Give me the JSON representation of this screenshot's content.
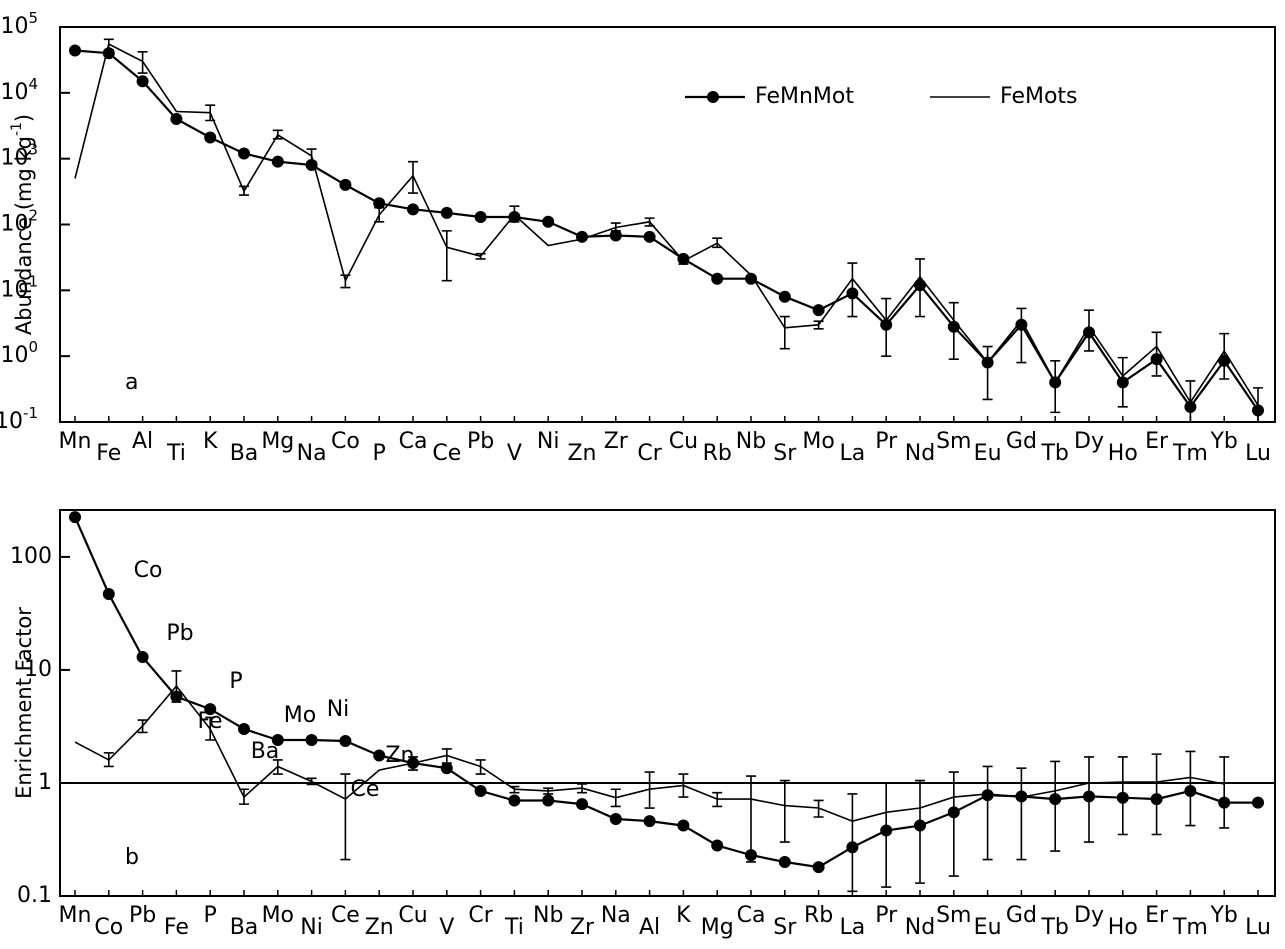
{
  "chart_data": [
    {
      "type": "line",
      "y_scale": "log",
      "ylim": [
        0.1,
        100000
      ],
      "yticks": [
        {
          "value": 0.1,
          "label": "10",
          "exponent": "-1"
        },
        {
          "value": 1,
          "label": "10",
          "exponent": "0"
        },
        {
          "value": 10,
          "label": "10",
          "exponent": "1"
        },
        {
          "value": 100,
          "label": "10",
          "exponent": "2"
        },
        {
          "value": 1000,
          "label": "10",
          "exponent": "3"
        },
        {
          "value": 10000,
          "label": "10",
          "exponent": "4"
        },
        {
          "value": 100000,
          "label": "10",
          "exponent": "5"
        }
      ],
      "y_label": {
        "text": "Abundance (mg kg",
        "sup": "-1",
        "end": ")"
      },
      "panel_label": "a",
      "legend": "upper right",
      "categories": [
        "Mn",
        "Fe",
        "Al",
        "Ti",
        "K",
        "Ba",
        "Mg",
        "Na",
        "Co",
        "P",
        "Ca",
        "Ce",
        "Pb",
        "V",
        "Ni",
        "Zn",
        "Zr",
        "Cr",
        "Cu",
        "Rb",
        "Nb",
        "Sr",
        "Mo",
        "La",
        "Pr",
        "Nd",
        "Sm",
        "Eu",
        "Gd",
        "Tb",
        "Dy",
        "Ho",
        "Er",
        "Tm",
        "Yb",
        "Lu"
      ],
      "series": [
        {
          "name": "FeMnMot",
          "color": "#000000",
          "marker": "circle",
          "values": [
            44000,
            40000,
            15000,
            4000,
            2100,
            1200,
            900,
            800,
            400,
            210,
            170,
            150,
            130,
            130,
            110,
            65,
            68,
            65,
            30,
            15,
            15,
            8,
            5,
            9,
            3,
            12,
            2.8,
            0.8,
            3,
            0.4,
            2.3,
            0.4,
            0.9,
            0.17,
            0.85,
            0.15
          ]
        },
        {
          "name": "FeMots",
          "color": "#000000",
          "marker": "none",
          "values": [
            500,
            55000,
            30000,
            5200,
            5000,
            320,
            2300,
            1100,
            14,
            140,
            550,
            45,
            33,
            140,
            48,
            60,
            90,
            110,
            28,
            52,
            17,
            2.7,
            3,
            15,
            3.5,
            16,
            3.5,
            0.8,
            3.5,
            0.4,
            2.8,
            0.5,
            1.4,
            0.2,
            1.2,
            0.18
          ],
          "errors": [
            null,
            [
              45000,
              65000
            ],
            [
              20000,
              42000
            ],
            null,
            [
              3800,
              6500
            ],
            [
              280,
              380
            ],
            [
              2000,
              2700
            ],
            [
              900,
              1400
            ],
            [
              11,
              17
            ],
            [
              110,
              180
            ],
            [
              300,
              900
            ],
            [
              14,
              80
            ],
            [
              30,
              36
            ],
            [
              110,
              190
            ],
            null,
            null,
            [
              80,
              105
            ],
            [
              95,
              125
            ],
            [
              25,
              32
            ],
            [
              45,
              62
            ],
            null,
            [
              1.3,
              4
            ],
            [
              2.6,
              3.4
            ],
            [
              4,
              26
            ],
            [
              1,
              7.5
            ],
            [
              4,
              30
            ],
            [
              0.9,
              6.5
            ],
            [
              0.22,
              1.4
            ],
            [
              0.8,
              5.3
            ],
            [
              0.14,
              0.85
            ],
            [
              1.2,
              5
            ],
            [
              0.17,
              0.95
            ],
            [
              0.5,
              2.3
            ],
            [
              0.1,
              0.42
            ],
            [
              0.45,
              2.2
            ],
            [
              0.1,
              0.33
            ]
          ]
        }
      ]
    },
    {
      "type": "line",
      "y_scale": "log",
      "ylim": [
        0.1,
        260
      ],
      "yticks": [
        0.1,
        1,
        10,
        100
      ],
      "y_label": {
        "text": "Enrichment Factor"
      },
      "panel_label": "b",
      "reference_line": 1,
      "categories": [
        "Mn",
        "Co",
        "Pb",
        "Fe",
        "P",
        "Ba",
        "Mo",
        "Ni",
        "Ce",
        "Zn",
        "Cu",
        "V",
        "Cr",
        "Ti",
        "Nb",
        "Zr",
        "Na",
        "Al",
        "K",
        "Mg",
        "Ca",
        "Sr",
        "Rb",
        "La",
        "Pr",
        "Nd",
        "Sm",
        "Eu",
        "Gd",
        "Tb",
        "Dy",
        "Ho",
        "Er",
        "Tm",
        "Yb",
        "Lu"
      ],
      "annotations": [
        "Co",
        "Pb",
        "P",
        "Fe",
        "Mo",
        "Ni",
        "Ba",
        "Zn",
        "Ce"
      ],
      "series": [
        {
          "name": "FeMnMot",
          "color": "#000000",
          "marker": "circle",
          "values": [
            225,
            47,
            13,
            5.8,
            4.5,
            3,
            2.4,
            2.4,
            2.35,
            1.75,
            1.5,
            1.35,
            0.85,
            0.7,
            0.7,
            0.65,
            0.48,
            0.46,
            0.42,
            0.28,
            0.23,
            0.2,
            0.18,
            0.27,
            0.38,
            0.42,
            0.55,
            0.78,
            0.76,
            0.72,
            0.76,
            0.74,
            0.72,
            0.85,
            0.67,
            0.67
          ]
        },
        {
          "name": "FeMots",
          "color": "#000000",
          "marker": "none",
          "values": [
            2.3,
            1.6,
            3.2,
            7.2,
            3,
            0.75,
            1.4,
            1.03,
            0.72,
            1.3,
            1.5,
            1.75,
            1.4,
            0.88,
            0.85,
            0.9,
            0.74,
            0.88,
            0.95,
            0.72,
            0.72,
            0.63,
            0.6,
            0.46,
            0.55,
            0.6,
            0.75,
            0.8,
            0.75,
            0.85,
            1,
            1.02,
            1.02,
            1.12,
            0.98,
            null
          ],
          "errors": [
            null,
            [
              1.4,
              1.85
            ],
            [
              2.8,
              3.6
            ],
            [
              5.2,
              9.8
            ],
            [
              2.4,
              3.8
            ],
            [
              0.65,
              0.88
            ],
            [
              1.2,
              1.6
            ],
            [
              0.97,
              1.1
            ],
            [
              0.21,
              1.2
            ],
            null,
            [
              1.3,
              1.7
            ],
            [
              1.5,
              2
            ],
            [
              1.2,
              1.6
            ],
            [
              0.82,
              0.93
            ],
            [
              0.8,
              0.9
            ],
            [
              0.82,
              0.98
            ],
            [
              0.62,
              0.88
            ],
            [
              0.6,
              1.25
            ],
            [
              0.75,
              1.2
            ],
            [
              0.62,
              0.82
            ],
            [
              0.2,
              1.15
            ],
            [
              0.3,
              1.05
            ],
            [
              0.5,
              0.7
            ],
            [
              0.11,
              0.8
            ],
            [
              0.12,
              1
            ],
            [
              0.13,
              1.05
            ],
            [
              0.15,
              1.25
            ],
            [
              0.21,
              1.4
            ],
            [
              0.21,
              1.35
            ],
            [
              0.25,
              1.55
            ],
            [
              0.3,
              1.7
            ],
            [
              0.35,
              1.7
            ],
            [
              0.35,
              1.8
            ],
            [
              0.42,
              1.9
            ],
            [
              0.4,
              1.7
            ],
            null
          ]
        }
      ]
    }
  ]
}
